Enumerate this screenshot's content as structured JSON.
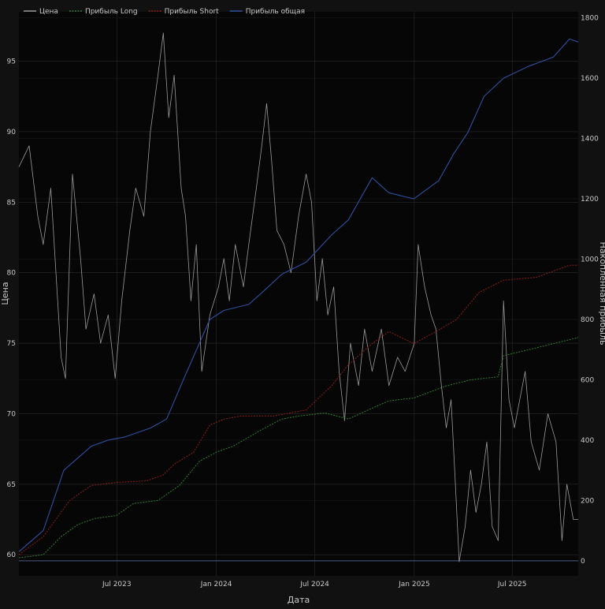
{
  "chart_data": {
    "type": "line",
    "xlabel": "Дата",
    "ylabel_left": "Цена",
    "ylabel_right": "Накопленная прибыль",
    "x_ticks": [
      "Jul 2023",
      "Jan 2024",
      "Jul 2024",
      "Jan 2025",
      "Jul 2025"
    ],
    "x_tick_dates": [
      "2023-07-01",
      "2024-01-01",
      "2024-07-01",
      "2025-01-01",
      "2025-07-01"
    ],
    "x_range": [
      "2023-01-01",
      "2025-10-31"
    ],
    "y_left_ticks": [
      60,
      65,
      70,
      75,
      80,
      85,
      90,
      95
    ],
    "y_left_range": [
      58.5,
      98.5
    ],
    "y_right_ticks": [
      0,
      200,
      400,
      600,
      800,
      1000,
      1200,
      1400,
      1600,
      1800
    ],
    "y_right_range": [
      -50,
      1820
    ],
    "legend_position": "top-left",
    "grid": true,
    "colors": {
      "background": "#060606",
      "paper": "#111111",
      "grid": "#2a2a2a",
      "price": "#9a9a9a",
      "long": "#2e7d2e",
      "short": "#8b1c1c",
      "total": "#2f4f9e",
      "zero": "#3d4a6a",
      "text": "#c8c8c8"
    },
    "series": [
      {
        "key": "price",
        "name": "Цена",
        "axis": "left",
        "points": [
          [
            "2023-01-01",
            87.5
          ],
          [
            "2023-01-20",
            89.0
          ],
          [
            "2023-02-05",
            84.0
          ],
          [
            "2023-02-15",
            82.0
          ],
          [
            "2023-03-01",
            86.0
          ],
          [
            "2023-03-12",
            79.0
          ],
          [
            "2023-03-20",
            74.0
          ],
          [
            "2023-03-28",
            72.5
          ],
          [
            "2023-04-10",
            87.0
          ],
          [
            "2023-04-25",
            81.0
          ],
          [
            "2023-05-05",
            76.0
          ],
          [
            "2023-05-20",
            78.5
          ],
          [
            "2023-06-01",
            75.0
          ],
          [
            "2023-06-15",
            77.0
          ],
          [
            "2023-06-28",
            72.5
          ],
          [
            "2023-07-10",
            78.0
          ],
          [
            "2023-07-25",
            83.0
          ],
          [
            "2023-08-05",
            86.0
          ],
          [
            "2023-08-20",
            84.0
          ],
          [
            "2023-09-01",
            90.0
          ],
          [
            "2023-09-15",
            94.0
          ],
          [
            "2023-09-25",
            97.0
          ],
          [
            "2023-10-05",
            91.0
          ],
          [
            "2023-10-15",
            94.0
          ],
          [
            "2023-10-28",
            86.0
          ],
          [
            "2023-11-05",
            84.0
          ],
          [
            "2023-11-15",
            78.0
          ],
          [
            "2023-11-25",
            82.0
          ],
          [
            "2023-12-05",
            73.0
          ],
          [
            "2023-12-20",
            77.0
          ],
          [
            "2024-01-05",
            79.0
          ],
          [
            "2024-01-15",
            81.0
          ],
          [
            "2024-01-25",
            78.0
          ],
          [
            "2024-02-05",
            82.0
          ],
          [
            "2024-02-20",
            79.0
          ],
          [
            "2024-03-01",
            82.0
          ],
          [
            "2024-03-15",
            86.0
          ],
          [
            "2024-03-25",
            89.0
          ],
          [
            "2024-04-03",
            92.0
          ],
          [
            "2024-04-12",
            88.0
          ],
          [
            "2024-04-22",
            83.0
          ],
          [
            "2024-05-05",
            82.0
          ],
          [
            "2024-05-18",
            80.0
          ],
          [
            "2024-06-01",
            84.0
          ],
          [
            "2024-06-15",
            87.0
          ],
          [
            "2024-06-25",
            85.0
          ],
          [
            "2024-07-05",
            78.0
          ],
          [
            "2024-07-15",
            81.0
          ],
          [
            "2024-07-25",
            77.0
          ],
          [
            "2024-08-05",
            79.0
          ],
          [
            "2024-08-15",
            73.0
          ],
          [
            "2024-08-25",
            69.5
          ],
          [
            "2024-09-05",
            75.0
          ],
          [
            "2024-09-20",
            72.0
          ],
          [
            "2024-10-01",
            76.0
          ],
          [
            "2024-10-15",
            73.0
          ],
          [
            "2024-11-01",
            76.0
          ],
          [
            "2024-11-15",
            72.0
          ],
          [
            "2024-12-01",
            74.0
          ],
          [
            "2024-12-15",
            73.0
          ],
          [
            "2025-01-01",
            75.0
          ],
          [
            "2025-01-08",
            82.0
          ],
          [
            "2025-01-20",
            79.0
          ],
          [
            "2025-02-01",
            77.0
          ],
          [
            "2025-02-10",
            76.0
          ],
          [
            "2025-02-20",
            72.0
          ],
          [
            "2025-03-01",
            69.0
          ],
          [
            "2025-03-10",
            71.0
          ],
          [
            "2025-03-18",
            65.0
          ],
          [
            "2025-03-25",
            59.5
          ],
          [
            "2025-04-05",
            62.0
          ],
          [
            "2025-04-15",
            66.0
          ],
          [
            "2025-04-25",
            63.0
          ],
          [
            "2025-05-05",
            65.0
          ],
          [
            "2025-05-15",
            68.0
          ],
          [
            "2025-05-25",
            62.0
          ],
          [
            "2025-06-05",
            61.0
          ],
          [
            "2025-06-15",
            78.0
          ],
          [
            "2025-06-25",
            71.0
          ],
          [
            "2025-07-05",
            69.0
          ],
          [
            "2025-07-15",
            71.0
          ],
          [
            "2025-07-25",
            73.0
          ],
          [
            "2025-08-05",
            68.0
          ],
          [
            "2025-08-20",
            66.0
          ],
          [
            "2025-09-05",
            70.0
          ],
          [
            "2025-09-20",
            68.0
          ],
          [
            "2025-10-01",
            61.0
          ],
          [
            "2025-10-10",
            65.0
          ],
          [
            "2025-10-22",
            62.5
          ],
          [
            "2025-10-31",
            62.5
          ]
        ]
      },
      {
        "key": "long",
        "name": "Прибыль Long",
        "axis": "right",
        "points": [
          [
            "2023-01-01",
            10
          ],
          [
            "2023-02-15",
            20
          ],
          [
            "2023-03-20",
            80
          ],
          [
            "2023-04-20",
            120
          ],
          [
            "2023-05-20",
            140
          ],
          [
            "2023-06-30",
            150
          ],
          [
            "2023-08-01",
            190
          ],
          [
            "2023-09-15",
            200
          ],
          [
            "2023-10-25",
            250
          ],
          [
            "2023-12-01",
            330
          ],
          [
            "2024-01-01",
            360
          ],
          [
            "2024-02-01",
            380
          ],
          [
            "2024-03-20",
            430
          ],
          [
            "2024-05-01",
            470
          ],
          [
            "2024-06-01",
            480
          ],
          [
            "2024-07-20",
            490
          ],
          [
            "2024-09-01",
            470
          ],
          [
            "2024-10-20",
            510
          ],
          [
            "2024-11-15",
            530
          ],
          [
            "2025-01-01",
            540
          ],
          [
            "2025-03-01",
            580
          ],
          [
            "2025-04-15",
            600
          ],
          [
            "2025-06-05",
            610
          ],
          [
            "2025-06-15",
            680
          ],
          [
            "2025-08-01",
            700
          ],
          [
            "2025-09-15",
            720
          ],
          [
            "2025-10-31",
            740
          ]
        ]
      },
      {
        "key": "short",
        "name": "Прибыль Short",
        "axis": "right",
        "points": [
          [
            "2023-01-01",
            20
          ],
          [
            "2023-02-15",
            80
          ],
          [
            "2023-04-05",
            200
          ],
          [
            "2023-05-15",
            250
          ],
          [
            "2023-07-01",
            260
          ],
          [
            "2023-08-25",
            265
          ],
          [
            "2023-09-25",
            285
          ],
          [
            "2023-10-15",
            320
          ],
          [
            "2023-11-20",
            360
          ],
          [
            "2023-12-20",
            450
          ],
          [
            "2024-01-15",
            470
          ],
          [
            "2024-02-15",
            480
          ],
          [
            "2024-04-15",
            480
          ],
          [
            "2024-06-15",
            500
          ],
          [
            "2024-08-01",
            580
          ],
          [
            "2024-09-01",
            650
          ],
          [
            "2024-10-15",
            720
          ],
          [
            "2024-11-15",
            760
          ],
          [
            "2024-12-31",
            720
          ],
          [
            "2025-02-10",
            760
          ],
          [
            "2025-03-20",
            800
          ],
          [
            "2025-05-01",
            890
          ],
          [
            "2025-06-15",
            930
          ],
          [
            "2025-08-15",
            940
          ],
          [
            "2025-10-15",
            980
          ],
          [
            "2025-10-31",
            980
          ]
        ]
      },
      {
        "key": "total",
        "name": "Прибыль общая",
        "axis": "right",
        "points": [
          [
            "2023-01-01",
            30
          ],
          [
            "2023-02-15",
            100
          ],
          [
            "2023-03-25",
            300
          ],
          [
            "2023-05-15",
            380
          ],
          [
            "2023-06-15",
            400
          ],
          [
            "2023-07-15",
            410
          ],
          [
            "2023-09-01",
            440
          ],
          [
            "2023-10-01",
            470
          ],
          [
            "2023-11-01",
            600
          ],
          [
            "2023-12-20",
            800
          ],
          [
            "2024-01-15",
            830
          ],
          [
            "2024-03-01",
            850
          ],
          [
            "2024-04-01",
            900
          ],
          [
            "2024-05-01",
            950
          ],
          [
            "2024-06-15",
            990
          ],
          [
            "2024-08-01",
            1080
          ],
          [
            "2024-09-01",
            1130
          ],
          [
            "2024-10-15",
            1270
          ],
          [
            "2024-11-15",
            1220
          ],
          [
            "2024-12-31",
            1200
          ],
          [
            "2025-02-15",
            1260
          ],
          [
            "2025-03-15",
            1350
          ],
          [
            "2025-04-10",
            1420
          ],
          [
            "2025-05-10",
            1540
          ],
          [
            "2025-06-15",
            1600
          ],
          [
            "2025-08-01",
            1640
          ],
          [
            "2025-09-15",
            1670
          ],
          [
            "2025-10-15",
            1730
          ],
          [
            "2025-10-31",
            1720
          ]
        ]
      }
    ]
  }
}
